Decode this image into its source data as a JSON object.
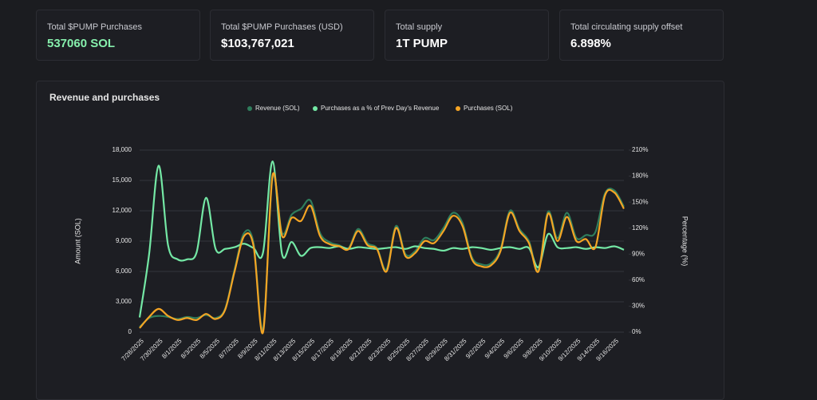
{
  "cards": [
    {
      "label": "Total $PUMP Purchases",
      "value": "537060 SOL"
    },
    {
      "label": "Total $PUMP Purchases (USD)",
      "value": "$103,767,021"
    },
    {
      "label": "Total supply",
      "value": "1T PUMP"
    },
    {
      "label": "Total circulating supply offset",
      "value": "6.898%"
    }
  ],
  "chart_data": {
    "type": "line",
    "title": "Revenue and purchases",
    "y_label": "Amount (SOL)",
    "y2_label": "Percentage (%)",
    "categories": [
      "7/28/2025",
      null,
      "7/30/2025",
      null,
      "8/1/2025",
      null,
      "8/3/2025",
      null,
      "8/5/2025",
      null,
      "8/7/2025",
      null,
      "8/9/2025",
      null,
      "8/11/2025",
      null,
      "8/13/2025",
      null,
      "8/15/2025",
      null,
      "8/17/2025",
      null,
      "8/19/2025",
      null,
      "8/21/2025",
      null,
      "8/23/2025",
      null,
      "8/25/2025",
      null,
      "8/27/2025",
      null,
      "8/29/2025",
      null,
      "8/31/2025",
      null,
      "9/2/2025",
      null,
      "9/4/2025",
      null,
      "9/6/2025",
      null,
      "9/8/2025",
      null,
      "9/10/2025",
      null,
      "9/12/2025",
      null,
      "9/14/2025",
      null,
      "9/16/2025",
      null
    ],
    "series": [
      {
        "name": "Revenue (SOL)",
        "color": "#2f7d5c",
        "values": [
          500,
          1400,
          1600,
          1500,
          1300,
          1500,
          1400,
          1700,
          1400,
          2300,
          6200,
          9800,
          8800,
          300,
          15300,
          9800,
          11600,
          12200,
          13000,
          9800,
          8900,
          8600,
          8300,
          10200,
          8800,
          8300,
          6200,
          10500,
          7700,
          8000,
          9300,
          9100,
          10300,
          11800,
          10800,
          7400,
          6700,
          6800,
          8200,
          12000,
          10200,
          9000,
          6200,
          11900,
          9300,
          11800,
          9300,
          9600,
          9900,
          13700,
          14000,
          12400
        ]
      },
      {
        "name": "Purchases as a % of Prev Day's Revenue",
        "color": "#74e8a5",
        "axis": "y2",
        "values": [
          17,
          90,
          192,
          100,
          84,
          84,
          92,
          155,
          96,
          96,
          98,
          102,
          97,
          92,
          197,
          90,
          104,
          88,
          97,
          98,
          97,
          99,
          96,
          98,
          97,
          96,
          97,
          98,
          96,
          99,
          97,
          96,
          94,
          97,
          96,
          98,
          97,
          95,
          97,
          98,
          96,
          97,
          75,
          113,
          98,
          97,
          98,
          96,
          98,
          97,
          99,
          95
        ]
      },
      {
        "name": "Purchases (SOL)",
        "color": "#f5a524",
        "values": [
          400,
          1500,
          2300,
          1600,
          1200,
          1400,
          1200,
          1800,
          1300,
          2200,
          6000,
          9500,
          8500,
          0,
          15500,
          9500,
          11300,
          11000,
          12500,
          9500,
          8700,
          8500,
          8200,
          10000,
          8600,
          8200,
          6000,
          10300,
          7500,
          7800,
          9000,
          8800,
          10000,
          11500,
          10500,
          7200,
          6500,
          6600,
          8000,
          11800,
          10000,
          8800,
          6000,
          11700,
          9000,
          11400,
          9000,
          9200,
          8400,
          13500,
          13800,
          12200
        ]
      }
    ],
    "ylim": [
      0,
      18000
    ],
    "yticks": [
      0,
      {
        "value": 3000,
        "label": "3,000"
      },
      {
        "value": 6000,
        "label": "6,000"
      },
      {
        "value": 9000,
        "label": "9,000"
      },
      {
        "value": 12000,
        "label": "12,000"
      },
      {
        "value": 15000,
        "label": "15,000"
      },
      {
        "value": 18000,
        "label": "18,000"
      }
    ],
    "y2lim": [
      0,
      210
    ],
    "y2ticks": [
      {
        "value": 0,
        "label": "0%"
      },
      {
        "value": 30,
        "label": "30%"
      },
      {
        "value": 60,
        "label": "60%"
      },
      {
        "value": 90,
        "label": "90%"
      },
      {
        "value": 120,
        "label": "120%"
      },
      {
        "value": 150,
        "label": "150%"
      },
      {
        "value": 180,
        "label": "180%"
      },
      {
        "value": 210,
        "label": "210%"
      }
    ],
    "grid": true
  }
}
